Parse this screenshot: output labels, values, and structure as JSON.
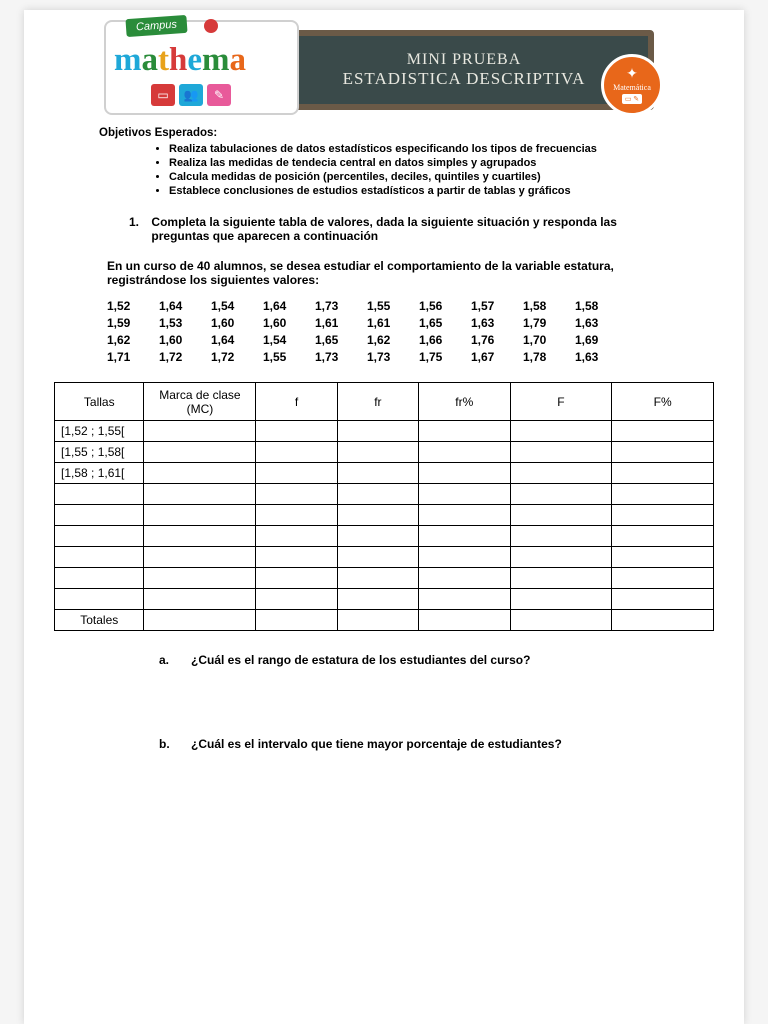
{
  "banner": {
    "campus": "Campus",
    "logo": "mathema",
    "title1": "MINI PRUEBA",
    "title2": "ESTADISTICA DESCRIPTIVA",
    "badge": "Matemática"
  },
  "objectives": {
    "title": "Objetivos Esperados:",
    "items": [
      "Realiza tabulaciones de datos estadísticos especificando los tipos de frecuencias",
      "Realiza las medidas de tendecia central en datos simples y agrupados",
      "Calcula medidas de posición (percentiles, deciles, quintiles y cuartiles)",
      "Establece conclusiones de estudios estadísticos a partir de tablas y gráficos"
    ]
  },
  "question1": {
    "num": "1.",
    "text": "Completa la siguiente tabla de valores, dada la siguiente situación y responda las preguntas que aparecen a continuación",
    "context": "En un curso de 40 alumnos, se desea estudiar el comportamiento de la variable estatura, registrándose los siguientes valores:"
  },
  "data_values": [
    "1,52",
    "1,64",
    "1,54",
    "1,64",
    "1,73",
    "1,55",
    "1,56",
    "1,57",
    "1,58",
    "1,58",
    "1,59",
    "1,53",
    "1,60",
    "1,60",
    "1,61",
    "1,61",
    "1,65",
    "1,63",
    "1,79",
    "1,63",
    "1,62",
    "1,60",
    "1,64",
    "1,54",
    "1,65",
    "1,62",
    "1,66",
    "1,76",
    "1,70",
    "1,69",
    "1,71",
    "1,72",
    "1,72",
    "1,55",
    "1,73",
    "1,73",
    "1,75",
    "1,67",
    "1,78",
    "1,63"
  ],
  "table": {
    "headers": [
      "Tallas",
      "Marca de clase (MC)",
      "f",
      "fr",
      "fr%",
      "F",
      "F%"
    ],
    "rows": [
      "[1,52 ; 1,55[",
      "[1,55 ; 1,58[",
      "[1,58 ; 1,61["
    ],
    "totals": "Totales"
  },
  "sub_a": {
    "lt": "a.",
    "text": "¿Cuál es el rango de estatura de los estudiantes del curso?"
  },
  "sub_b": {
    "lt": "b.",
    "text": "¿Cuál es el intervalo que tiene mayor porcentaje de estudiantes?"
  }
}
